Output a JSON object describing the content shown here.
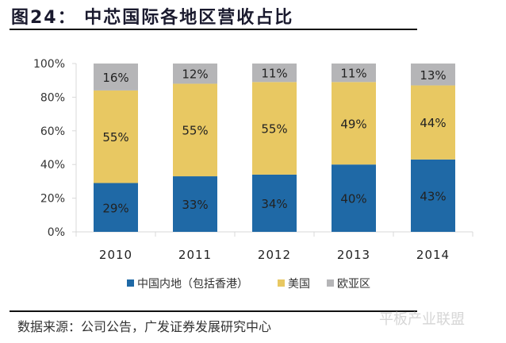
{
  "header": {
    "title": "图24：  中芯国际各地区营收占比"
  },
  "footer": {
    "source": "数据来源：公司公告，广发证券发展研究中心",
    "watermark": "平板产业联盟"
  },
  "chart_data": {
    "type": "bar",
    "stacked": true,
    "title": "图24：  中芯国际各地区营收占比",
    "xlabel": "",
    "ylabel": "",
    "ylim": [
      0,
      100
    ],
    "yticks": [
      "0%",
      "20%",
      "40%",
      "60%",
      "80%",
      "100%"
    ],
    "categories": [
      "2010",
      "2011",
      "2012",
      "2013",
      "2014"
    ],
    "series": [
      {
        "name": "中国内地（包括香港）",
        "color": "#1f69a6",
        "values": [
          29,
          33,
          34,
          40,
          43
        ],
        "labels": [
          "29%",
          "33%",
          "34%",
          "40%",
          "43%"
        ]
      },
      {
        "name": "美国",
        "color": "#e8c862",
        "values": [
          55,
          55,
          55,
          49,
          44
        ],
        "labels": [
          "55%",
          "55%",
          "55%",
          "49%",
          "44%"
        ]
      },
      {
        "name": "欧亚区",
        "color": "#b5b5b7",
        "values": [
          16,
          12,
          11,
          11,
          13
        ],
        "labels": [
          "16%",
          "12%",
          "11%",
          "11%",
          "13%"
        ]
      }
    ],
    "legend": "bottom",
    "grid": false
  }
}
